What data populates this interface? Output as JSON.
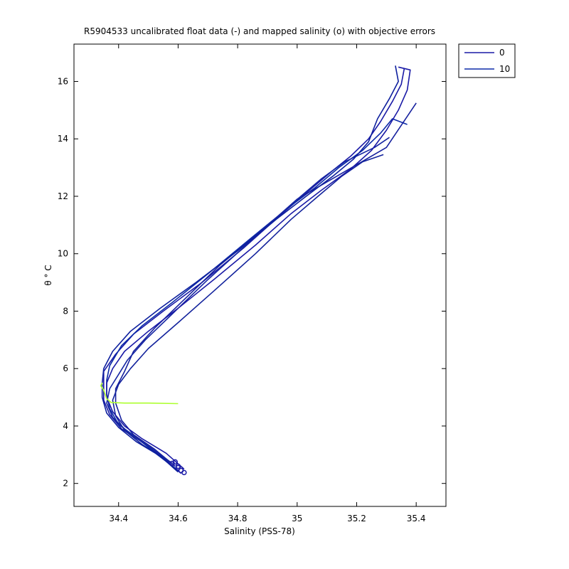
{
  "chart_data": {
    "type": "line",
    "title": "R5904533 uncalibrated float data (-) and mapped salinity (o) with objective errors",
    "xlabel": "Salinity (PSS-78)",
    "ylabel": "θ ° C",
    "xlim": [
      34.25,
      35.5
    ],
    "ylim": [
      1.2,
      17.3
    ],
    "xticks": [
      34.4,
      34.6,
      34.8,
      35,
      35.2,
      35.4
    ],
    "xtick_labels": [
      "34.4",
      "34.6",
      "34.8",
      "35",
      "35.2",
      "35.4"
    ],
    "yticks": [
      2,
      4,
      6,
      8,
      10,
      12,
      14,
      16
    ],
    "ytick_labels": [
      "2",
      "4",
      "6",
      "8",
      "10",
      "12",
      "14",
      "16"
    ],
    "legend": {
      "position": "outside-top-right",
      "entries": [
        {
          "label": "0",
          "color": "#1a1aa6"
        },
        {
          "label": "10",
          "color": "#0b2aa8"
        }
      ]
    },
    "series": [
      {
        "color": "#1a1aa6",
        "points": [
          [
            34.61,
            2.35
          ],
          [
            34.55,
            2.9
          ],
          [
            34.47,
            3.5
          ],
          [
            34.41,
            3.9
          ],
          [
            34.37,
            4.4
          ],
          [
            34.35,
            4.9
          ],
          [
            34.35,
            5.4
          ],
          [
            34.35,
            5.9
          ],
          [
            34.39,
            6.5
          ],
          [
            34.45,
            7.2
          ],
          [
            34.55,
            8.0
          ],
          [
            34.68,
            9.0
          ],
          [
            34.82,
            10.2
          ],
          [
            34.95,
            11.4
          ],
          [
            35.04,
            12.2
          ],
          [
            35.12,
            12.9
          ],
          [
            35.18,
            13.4
          ],
          [
            35.24,
            14.0
          ],
          [
            35.28,
            14.6
          ],
          [
            35.32,
            15.3
          ],
          [
            35.35,
            15.9
          ],
          [
            35.36,
            16.45
          ]
        ]
      },
      {
        "color": "#0b2aa8",
        "points": [
          [
            34.6,
            2.45
          ],
          [
            34.53,
            3.0
          ],
          [
            34.46,
            3.6
          ],
          [
            34.4,
            4.05
          ],
          [
            34.37,
            4.6
          ],
          [
            34.36,
            5.1
          ],
          [
            34.36,
            5.6
          ],
          [
            34.37,
            6.1
          ],
          [
            34.41,
            6.8
          ],
          [
            34.48,
            7.5
          ],
          [
            34.58,
            8.3
          ],
          [
            34.7,
            9.3
          ],
          [
            34.84,
            10.5
          ],
          [
            34.97,
            11.6
          ],
          [
            35.06,
            12.3
          ],
          [
            35.14,
            13.0
          ],
          [
            35.22,
            13.6
          ],
          [
            35.28,
            14.2
          ],
          [
            35.32,
            14.7
          ],
          [
            35.37,
            14.5
          ]
        ]
      },
      {
        "color": "#16209e",
        "points": [
          [
            34.59,
            2.6
          ],
          [
            34.52,
            3.2
          ],
          [
            34.45,
            3.7
          ],
          [
            34.41,
            4.2
          ],
          [
            34.39,
            4.8
          ],
          [
            34.39,
            5.3
          ],
          [
            34.42,
            5.9
          ],
          [
            34.45,
            6.6
          ],
          [
            34.52,
            7.4
          ],
          [
            34.62,
            8.4
          ],
          [
            34.74,
            9.6
          ],
          [
            34.88,
            10.8
          ],
          [
            35.0,
            11.9
          ],
          [
            35.1,
            12.5
          ],
          [
            35.2,
            13.1
          ],
          [
            35.3,
            13.7
          ],
          [
            35.4,
            15.25
          ]
        ]
      },
      {
        "color": "#1525a2",
        "points": [
          [
            34.58,
            2.7
          ],
          [
            34.5,
            3.3
          ],
          [
            34.43,
            3.8
          ],
          [
            34.38,
            4.3
          ],
          [
            34.36,
            4.8
          ],
          [
            34.37,
            5.3
          ],
          [
            34.4,
            5.8
          ],
          [
            34.43,
            6.3
          ],
          [
            34.49,
            7.0
          ],
          [
            34.58,
            7.9
          ],
          [
            34.7,
            9.1
          ],
          [
            34.85,
            10.5
          ],
          [
            34.99,
            11.8
          ],
          [
            35.08,
            12.6
          ],
          [
            35.16,
            13.2
          ],
          [
            35.26,
            13.7
          ],
          [
            35.31,
            14.05
          ]
        ]
      },
      {
        "color": "#12229c",
        "points": [
          [
            34.57,
            2.75
          ],
          [
            34.48,
            3.35
          ],
          [
            34.42,
            3.85
          ],
          [
            34.39,
            4.35
          ],
          [
            34.38,
            4.9
          ],
          [
            34.4,
            5.45
          ],
          [
            34.44,
            6.0
          ],
          [
            34.5,
            6.7
          ],
          [
            34.6,
            7.6
          ],
          [
            34.72,
            8.7
          ],
          [
            34.86,
            10.0
          ],
          [
            34.98,
            11.2
          ],
          [
            35.07,
            12.0
          ],
          [
            35.15,
            12.7
          ],
          [
            35.22,
            13.2
          ],
          [
            35.29,
            13.45
          ]
        ]
      },
      {
        "color": "#1a1aa6",
        "points": [
          [
            34.62,
            2.5
          ],
          [
            34.56,
            3.05
          ],
          [
            34.48,
            3.55
          ],
          [
            34.42,
            4.0
          ],
          [
            34.38,
            4.5
          ],
          [
            34.36,
            5.0
          ],
          [
            34.36,
            5.5
          ],
          [
            34.38,
            6.0
          ],
          [
            34.42,
            6.6
          ],
          [
            34.5,
            7.3
          ],
          [
            34.6,
            8.1
          ],
          [
            34.72,
            9.1
          ],
          [
            34.86,
            10.3
          ],
          [
            34.98,
            11.4
          ],
          [
            35.08,
            12.2
          ],
          [
            35.18,
            12.95
          ],
          [
            35.25,
            13.6
          ],
          [
            35.3,
            14.3
          ],
          [
            35.34,
            15.0
          ],
          [
            35.37,
            15.7
          ],
          [
            35.38,
            16.4
          ],
          [
            35.34,
            16.5
          ]
        ]
      },
      {
        "color": "#0d1f9e",
        "points": [
          [
            34.6,
            2.4
          ],
          [
            34.54,
            2.95
          ],
          [
            34.46,
            3.45
          ],
          [
            34.4,
            3.95
          ],
          [
            34.36,
            4.45
          ],
          [
            34.345,
            5.0
          ],
          [
            34.345,
            5.5
          ],
          [
            34.35,
            6.0
          ],
          [
            34.38,
            6.6
          ],
          [
            34.44,
            7.3
          ],
          [
            34.54,
            8.1
          ],
          [
            34.66,
            9.0
          ],
          [
            34.8,
            10.1
          ],
          [
            34.93,
            11.2
          ],
          [
            35.03,
            12.0
          ],
          [
            35.12,
            12.7
          ],
          [
            35.19,
            13.3
          ],
          [
            35.24,
            13.9
          ],
          [
            35.27,
            14.7
          ],
          [
            35.31,
            15.4
          ],
          [
            35.34,
            16.0
          ],
          [
            35.33,
            16.55
          ]
        ]
      },
      {
        "color": "#adff2f",
        "points": [
          [
            34.6,
            4.78
          ],
          [
            34.5,
            4.8
          ],
          [
            34.42,
            4.8
          ],
          [
            34.375,
            4.82
          ],
          [
            34.36,
            4.95
          ],
          [
            34.355,
            5.1
          ],
          [
            34.35,
            5.25
          ],
          [
            34.34,
            5.4
          ],
          [
            34.345,
            5.5
          ]
        ]
      }
    ]
  }
}
